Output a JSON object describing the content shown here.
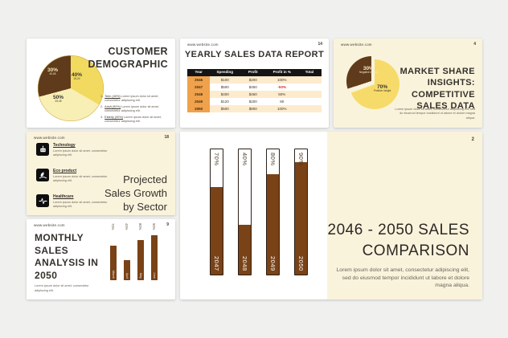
{
  "colors": {
    "canvas_bg": "#f0f0ee",
    "cream_bg": "#faf3dc",
    "brown": "#7a4217",
    "dark_brown": "#5f3b1c",
    "yellow": "#f2d95f",
    "pale_yellow": "#f8efb5",
    "pie_yellow": "#f7db6a",
    "orange": "#f0a14b",
    "light_orange": "#fdebcd",
    "negative_red": "#e02b20",
    "table_header": "#141414"
  },
  "slides": {
    "customer_demographic": {
      "title_lines": [
        "CUSTOMER",
        "DEMOGRAPHIC"
      ],
      "pie": {
        "slice1_pct": "40%",
        "slice1_sub": "18-24",
        "slice2_pct": "50%",
        "slice2_sub": "25-45",
        "slice3_pct": "30%",
        "slice3_sub": "45-65"
      },
      "list": [
        {
          "num": "1.",
          "label": "Teen (40%)",
          "text": "Lorem ipsum dolor sit amet, consectetur adipiscing elit."
        },
        {
          "num": "2.",
          "label": "Adult (50%)",
          "text": "Lorem ipsum dolor sit amet, consectetur adipiscing elit."
        },
        {
          "num": "3.",
          "label": "Elderly (30%)",
          "text": "Lorem ipsum dolor sit amet, consectetur adipiscing elit."
        }
      ]
    },
    "yearly_sales": {
      "url": "www.website.com",
      "page": "14",
      "title": "YEARLY SALES DATA REPORT",
      "headers": [
        "Year",
        "Spending",
        "Profit",
        "Profit in %",
        "Total"
      ],
      "rows": [
        {
          "year": "2046",
          "spending": "$100",
          "profit": "$200",
          "pct": "100%",
          "total": "",
          "negative": false
        },
        {
          "year": "2047",
          "spending": "$500",
          "profit": "$450",
          "pct": "-50%",
          "total": "",
          "negative": true
        },
        {
          "year": "2048",
          "spending": "$400",
          "profit": "$450",
          "pct": "50%",
          "total": "",
          "negative": false
        },
        {
          "year": "2049",
          "spending": "$120",
          "profit": "$200",
          "pct": "80",
          "total": "",
          "negative": false
        },
        {
          "year": "2050",
          "spending": "$500",
          "profit": "$800",
          "pct": "100%",
          "total": "",
          "negative": false
        }
      ]
    },
    "market_share": {
      "url": "www.website.com",
      "page": "4",
      "title_lines": [
        "MARKET SHARE",
        "INSIGHTS:",
        "COMPETITIVE",
        "SALES DATA"
      ],
      "pie": {
        "big_pct": "70%",
        "big_sub": "Positive insight",
        "small_pct": "30%",
        "small_sub": "Negative insight"
      },
      "body": "Lorem ipsum dolor sit amet, consectetur adipiscing elit, sed do eiusmod tempor incididunt ut labore et dolore magna aliqua."
    },
    "sector_growth": {
      "url": "www.website.com",
      "page": "18",
      "title_lines": [
        "Projected",
        "Sales Growth",
        "by Sector"
      ],
      "items": [
        {
          "icon": "robot-icon",
          "label": "Technology",
          "text": "Lorem ipsum dolor sit amet, consectetur adipiscing elit."
        },
        {
          "icon": "leaf-icon",
          "label": "Eco product",
          "text": "Lorem ipsum dolor sit amet, consectetur adipiscing elit."
        },
        {
          "icon": "pulse-icon",
          "label": "Healthcare",
          "text": "Lorem ipsum dolor sit amet, consectetur adipiscing elit."
        }
      ]
    },
    "sales_comparison": {
      "page": "2",
      "title_lines": [
        "2046 - 2050 SALES",
        "COMPARISON"
      ],
      "body": "Lorem ipsum dolor sit amet, consectetur adipiscing elit, sed do eiusmod tempor incididunt ut labore et dolore magna aliqua."
    },
    "monthly_analysis": {
      "url": "www.website.com",
      "page": "9",
      "title_lines": [
        "MONTHLY SALES",
        "ANALYSIS IN",
        "2050"
      ],
      "body": "Lorem ipsum dolor sit amet, consectetur adipiscing elit."
    }
  },
  "chart_data": [
    {
      "type": "pie",
      "title": "Customer demographic",
      "labels": [
        "18-24",
        "25-45",
        "45-65"
      ],
      "values": [
        40,
        50,
        30
      ],
      "colors": [
        "#f2d95f",
        "#f8efb5",
        "#5f3b1c"
      ],
      "value_labels": [
        "40%",
        "50%",
        "30%"
      ]
    },
    {
      "type": "table",
      "title": "Yearly sales data report",
      "columns": [
        "Year",
        "Spending",
        "Profit",
        "Profit in %",
        "Total"
      ],
      "rows": [
        [
          "2046",
          "$100",
          "$200",
          "100%",
          ""
        ],
        [
          "2047",
          "$500",
          "$450",
          "-50%",
          ""
        ],
        [
          "2048",
          "$400",
          "$450",
          "50%",
          ""
        ],
        [
          "2049",
          "$120",
          "$200",
          "80",
          ""
        ],
        [
          "2050",
          "$500",
          "$800",
          "100%",
          ""
        ]
      ]
    },
    {
      "type": "pie",
      "title": "Market share insights: competitive sales data",
      "labels": [
        "Positive insight",
        "Negative insight"
      ],
      "values": [
        70,
        30
      ],
      "colors": [
        "#f7db6a",
        "#5f3b1c"
      ],
      "value_labels": [
        "70%",
        "30%"
      ]
    },
    {
      "type": "bar",
      "title": "2046 - 2050 sales comparison",
      "categories": [
        "2047",
        "2048",
        "2049",
        "2050"
      ],
      "values": [
        70,
        40,
        80,
        90
      ],
      "value_labels": [
        "70%",
        "40%",
        "80%",
        "90%"
      ],
      "ylim": [
        0,
        100
      ],
      "unit": "%",
      "orientation": "vertical"
    },
    {
      "type": "bar",
      "title": "Monthly sales analysis in 2050",
      "categories": [
        "March",
        "April",
        "May",
        "June"
      ],
      "values": [
        70,
        40,
        80,
        90
      ],
      "value_labels": [
        "70%",
        "40%",
        "80%",
        "90%"
      ],
      "ylim": [
        0,
        100
      ],
      "unit": "%",
      "orientation": "vertical"
    }
  ]
}
